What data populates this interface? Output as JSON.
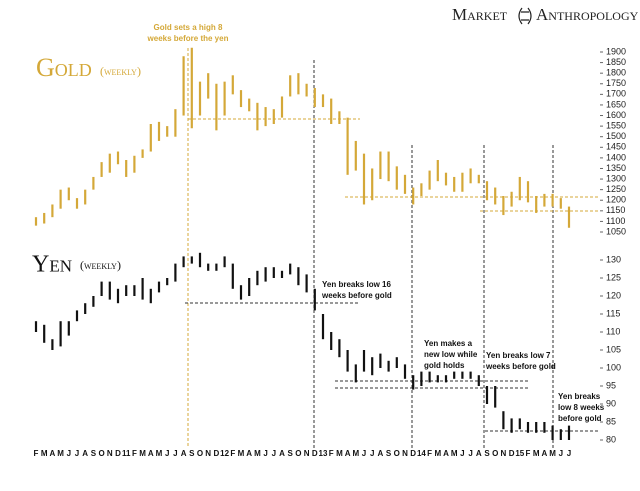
{
  "brand": {
    "left": "Market",
    "right": "Anthropology"
  },
  "chart_data": [
    {
      "type": "range-bar",
      "title": "Gold",
      "subtitle": "(weekly)",
      "color": "#d4a838",
      "ylim": [
        1050,
        1900
      ],
      "yticks": [
        1050,
        1100,
        1150,
        1200,
        1250,
        1300,
        1350,
        1400,
        1450,
        1500,
        1550,
        1600,
        1650,
        1700,
        1750,
        1800,
        1850,
        1900
      ],
      "low": [
        1080,
        1090,
        1120,
        1160,
        1200,
        1160,
        1180,
        1250,
        1310,
        1330,
        1370,
        1310,
        1330,
        1400,
        1430,
        1480,
        1500,
        1500,
        1600,
        1540,
        1600,
        1680,
        1530,
        1600,
        1700,
        1640,
        1620,
        1530,
        1550,
        1560,
        1590,
        1690,
        1700,
        1690,
        1640,
        1640,
        1560,
        1560,
        1320,
        1340,
        1180,
        1200,
        1300,
        1290,
        1250,
        1230,
        1180,
        1220,
        1250,
        1290,
        1270,
        1240,
        1240,
        1280,
        1280,
        1200,
        1180,
        1130,
        1170,
        1200,
        1190,
        1140,
        1170,
        1170,
        1160,
        1070
      ],
      "high": [
        1120,
        1140,
        1180,
        1250,
        1260,
        1210,
        1250,
        1310,
        1380,
        1420,
        1430,
        1390,
        1410,
        1440,
        1560,
        1570,
        1550,
        1630,
        1880,
        1920,
        1760,
        1800,
        1750,
        1760,
        1790,
        1720,
        1680,
        1660,
        1640,
        1630,
        1690,
        1790,
        1800,
        1750,
        1730,
        1700,
        1680,
        1620,
        1590,
        1480,
        1420,
        1350,
        1430,
        1430,
        1360,
        1320,
        1260,
        1280,
        1340,
        1390,
        1330,
        1310,
        1330,
        1350,
        1320,
        1290,
        1260,
        1220,
        1240,
        1310,
        1290,
        1220,
        1230,
        1230,
        1210,
        1170
      ],
      "annotations": [
        {
          "lines": [
            "Gold sets a high 8",
            "weeks before the yen"
          ]
        }
      ]
    },
    {
      "type": "range-bar",
      "title": "Yen",
      "subtitle": "(weekly)",
      "color": "#111111",
      "ylim": [
        80,
        130
      ],
      "yticks": [
        80,
        85,
        90,
        95,
        100,
        105,
        110,
        115,
        120,
        125,
        130
      ],
      "categories": [
        "F",
        "M",
        "A",
        "M",
        "J",
        "J",
        "A",
        "S",
        "O",
        "N",
        "D",
        "11",
        "F",
        "M",
        "A",
        "M",
        "J",
        "J",
        "A",
        "S",
        "O",
        "N",
        "D",
        "12",
        "F",
        "M",
        "A",
        "M",
        "J",
        "J",
        "A",
        "S",
        "O",
        "N",
        "D",
        "13",
        "F",
        "M",
        "A",
        "M",
        "J",
        "J",
        "A",
        "S",
        "O",
        "N",
        "D",
        "14",
        "F",
        "M",
        "A",
        "M",
        "J",
        "J",
        "A",
        "S",
        "O",
        "N",
        "D",
        "15",
        "F",
        "M",
        "A",
        "M",
        "J",
        "J"
      ],
      "low": [
        110,
        107,
        105,
        106,
        109,
        113,
        115,
        117,
        120,
        119,
        118,
        120,
        120,
        119,
        118,
        121,
        123,
        124,
        128,
        129,
        128,
        127,
        127,
        128,
        122,
        119,
        120,
        123,
        124,
        125,
        125,
        126,
        123,
        121,
        116,
        108,
        105,
        103,
        99,
        96,
        99,
        98,
        100,
        99,
        100,
        97,
        94,
        95,
        96,
        96,
        96,
        97,
        97,
        97,
        95,
        90,
        89,
        83,
        82,
        83,
        82,
        82,
        82,
        80,
        80,
        80
      ],
      "high": [
        113,
        112,
        108,
        113,
        113,
        116,
        118,
        120,
        124,
        124,
        122,
        123,
        123,
        125,
        122,
        124,
        125,
        129,
        131,
        131,
        132,
        129,
        129,
        131,
        129,
        123,
        125,
        127,
        128,
        128,
        127,
        129,
        128,
        126,
        122,
        115,
        110,
        108,
        105,
        101,
        105,
        103,
        104,
        102,
        103,
        101,
        98,
        99,
        99,
        98,
        98,
        99,
        99,
        99,
        98,
        95,
        95,
        88,
        86,
        86,
        85,
        85,
        85,
        84,
        83,
        84
      ],
      "annotations": [
        {
          "lines": [
            "Yen breaks low 16",
            "weeks before gold"
          ]
        },
        {
          "lines": [
            "Yen makes a",
            "new low while",
            "gold holds"
          ]
        },
        {
          "lines": [
            "Yen breaks low 7",
            "weeks before gold"
          ]
        },
        {
          "lines": [
            "Yen breaks",
            "low 8 weeks",
            "before gold"
          ]
        }
      ]
    }
  ]
}
